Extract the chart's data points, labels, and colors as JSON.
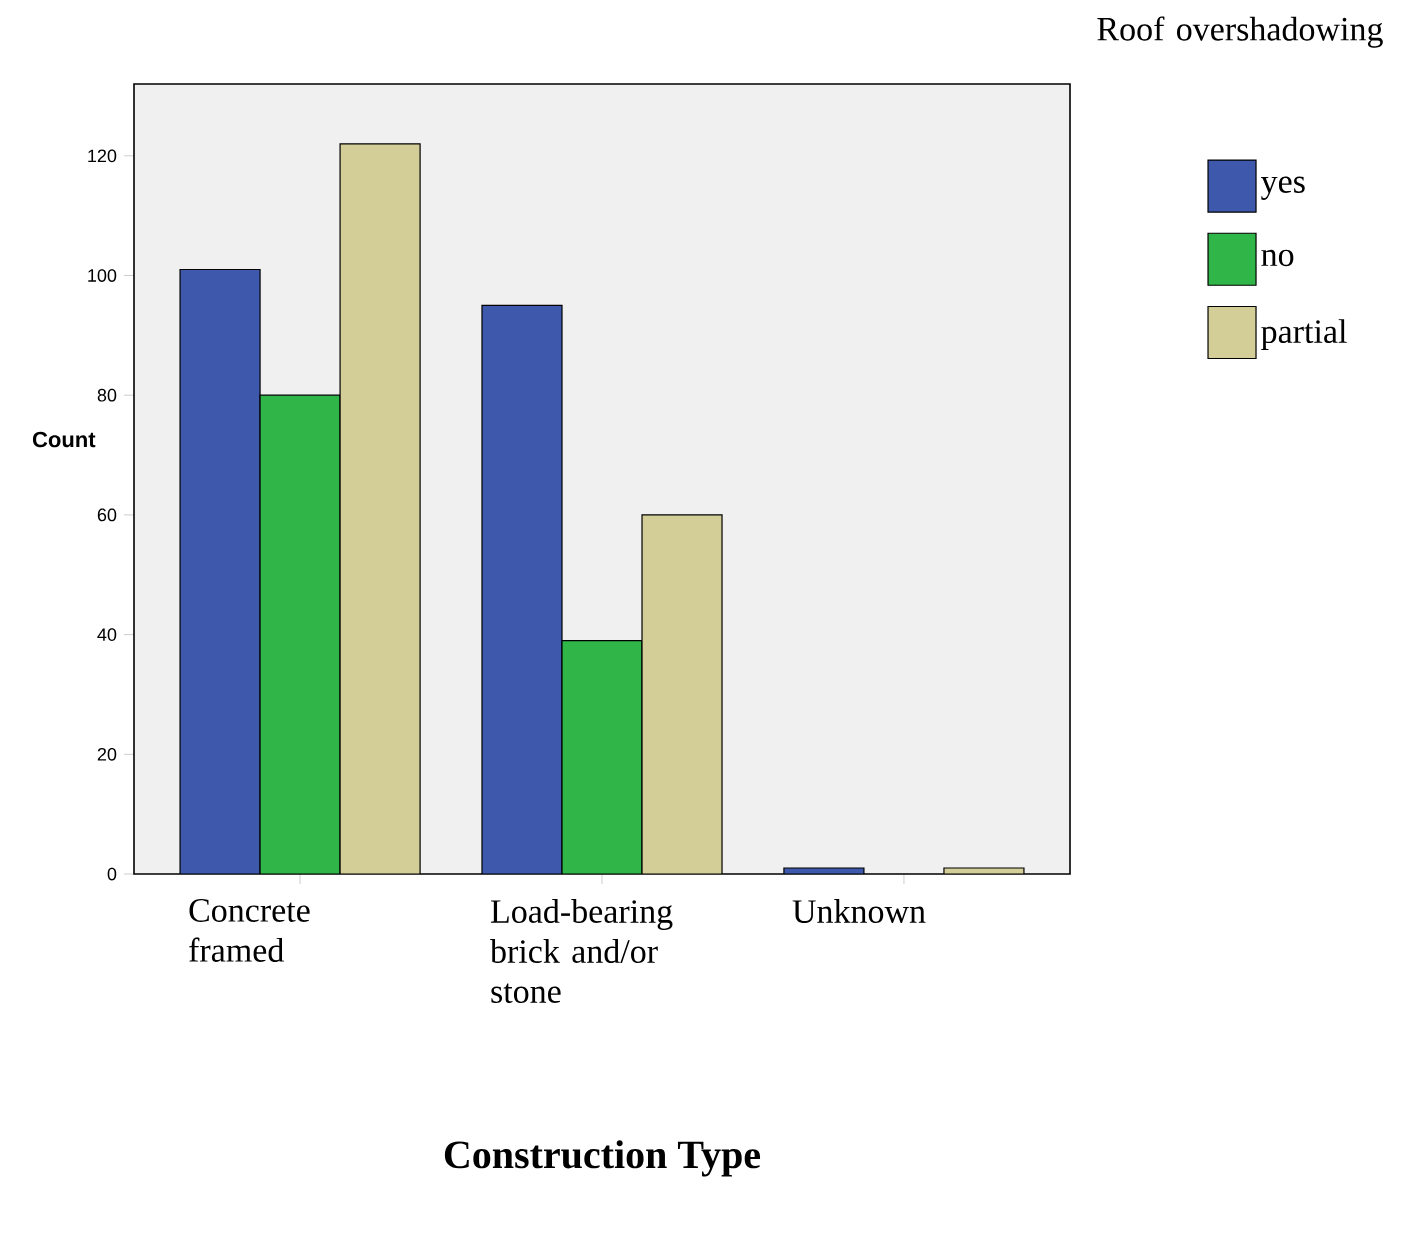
{
  "chart_data": {
    "type": "bar",
    "xlabel": "Construction Type",
    "ylabel": "Count",
    "legend_title": "Roof overshadowing",
    "categories": [
      "Concrete framed",
      "Load-bearing brick and/or stone",
      "Unknown"
    ],
    "series": [
      {
        "name": "yes",
        "color": "#3e58ac",
        "values": [
          101,
          95,
          1
        ]
      },
      {
        "name": "no",
        "color": "#2fb548",
        "values": [
          80,
          39,
          0
        ]
      },
      {
        "name": "partial",
        "color": "#d3ce97",
        "values": [
          122,
          60,
          1
        ]
      }
    ],
    "ylim": [
      0,
      132
    ],
    "yticks": [
      0,
      20,
      40,
      60,
      80,
      100,
      120
    ],
    "grid": false,
    "legend": "right"
  }
}
